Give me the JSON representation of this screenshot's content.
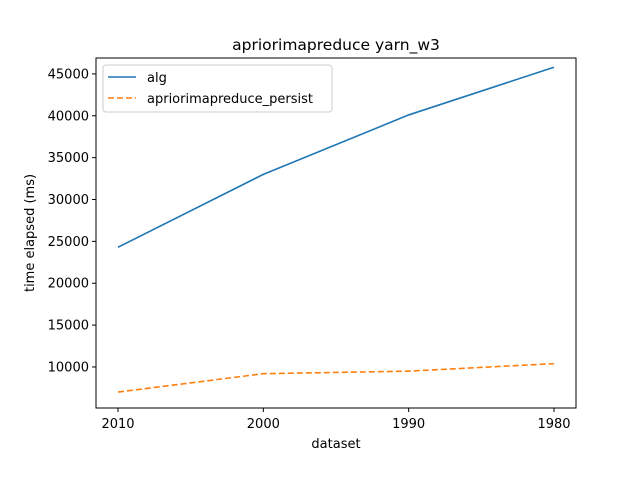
{
  "chart_data": {
    "type": "line",
    "title": "apriorimapreduce yarn_w3",
    "xlabel": "dataset",
    "ylabel": "time elapsed (ms)",
    "categories": [
      "2010",
      "2000",
      "1990",
      "1980"
    ],
    "ylim": [
      5100,
      46900
    ],
    "yticks": [
      10000,
      15000,
      20000,
      25000,
      30000,
      35000,
      40000,
      45000
    ],
    "grid": false,
    "legend_position": "top-left",
    "series": [
      {
        "name": "alg",
        "values": [
          24300,
          33000,
          40100,
          45800
        ],
        "color": "#1f77b4",
        "style": "solid"
      },
      {
        "name": "apriorimapreduce_persist",
        "values": [
          7000,
          9200,
          9500,
          10400
        ],
        "color": "#ff7f0e",
        "style": "dashed"
      }
    ]
  }
}
